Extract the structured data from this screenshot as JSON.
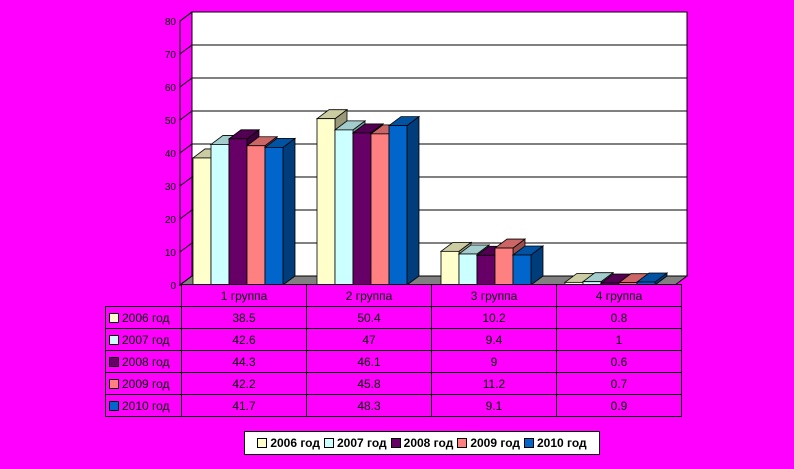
{
  "chart_data": {
    "type": "bar",
    "categories": [
      "1 группа",
      "2 группа",
      "3 группа",
      "4 группа"
    ],
    "series": [
      {
        "name": "2006 год",
        "values": [
          38.5,
          50.4,
          10.2,
          0.8
        ],
        "color": "#ffffcc"
      },
      {
        "name": "2007 год",
        "values": [
          42.6,
          47,
          9.4,
          1
        ],
        "color": "#ccffff"
      },
      {
        "name": "2008 год",
        "values": [
          44.3,
          46.1,
          9,
          0.6
        ],
        "color": "#660066"
      },
      {
        "name": "2009 год",
        "values": [
          42.2,
          45.8,
          11.2,
          0.7
        ],
        "color": "#ff8080"
      },
      {
        "name": "2010 год",
        "values": [
          41.7,
          48.3,
          9.1,
          0.9
        ],
        "color": "#0066cc"
      }
    ],
    "yticks": [
      "0",
      "10",
      "20",
      "30",
      "40",
      "50",
      "60",
      "70",
      "80"
    ],
    "ylim": [
      0,
      80
    ],
    "grid": true,
    "legend": "bottom",
    "table": [
      [
        "38.5",
        "50.4",
        "10.2",
        "0.8"
      ],
      [
        "42.6",
        "47",
        "9.4",
        "1"
      ],
      [
        "44.3",
        "46.1",
        "9",
        "0.6"
      ],
      [
        "42.2",
        "45.8",
        "11.2",
        "0.7"
      ],
      [
        "41.7",
        "48.3",
        "9.1",
        "0.9"
      ]
    ]
  }
}
